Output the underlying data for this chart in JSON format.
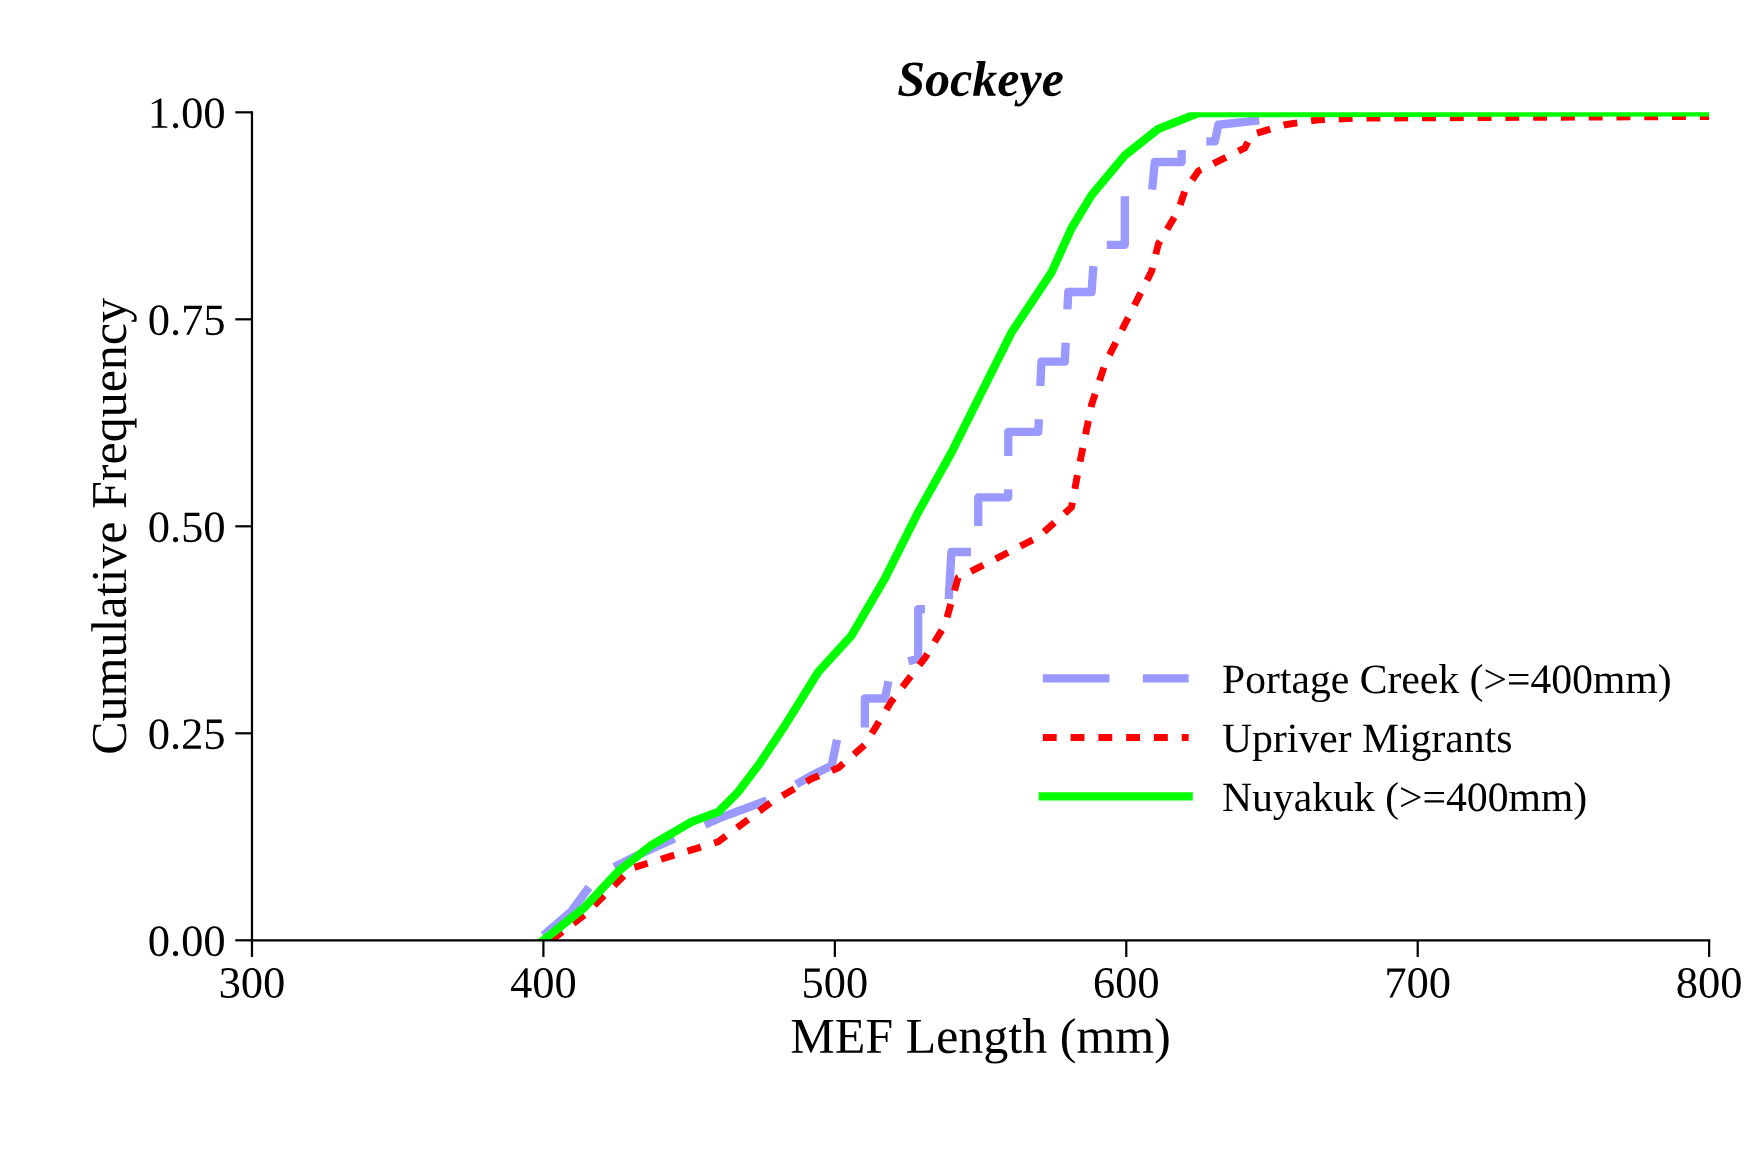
{
  "chart_data": {
    "type": "line",
    "title": "Sockeye",
    "xlabel": "MEF Length (mm)",
    "ylabel": "Cumulative Frequency",
    "xlim": [
      300,
      800
    ],
    "xticks": [
      300,
      400,
      500,
      600,
      700,
      800
    ],
    "ylim": [
      0,
      1
    ],
    "yticks": [
      {
        "value": 0,
        "label": "0.00"
      },
      {
        "value": 0.25,
        "label": "0.25"
      },
      {
        "value": 0.5,
        "label": "0.50"
      },
      {
        "value": 0.75,
        "label": "0.75"
      },
      {
        "value": 1,
        "label": "1.00"
      }
    ],
    "grid": false,
    "legend": "bottom right",
    "marker": "none",
    "series": [
      {
        "name": "Portage Creek (>=400mm)",
        "color": "#9999ff",
        "line_style": "dashed",
        "x": [
          400.0,
          409.6,
          418.8,
          432.5,
          460.0,
          478.3,
          492.0,
          498.9,
          501.1,
          510.3,
          510.3,
          517.2,
          519.5,
          528.6,
          528.6,
          538.9,
          540.0,
          549.2,
          549.2,
          559.5,
          559.5,
          569.8,
          570.9,
          578.9,
          580.1,
          588.1,
          589.2,
          599.5,
          599.5,
          608.7,
          609.8,
          619.0,
          619.0,
          630.4,
          631.6,
          647.6
        ],
        "values": [
          0.006,
          0.035,
          0.079,
          0.103,
          0.147,
          0.171,
          0.199,
          0.211,
          0.248,
          0.256,
          0.292,
          0.292,
          0.332,
          0.34,
          0.4,
          0.4,
          0.469,
          0.469,
          0.535,
          0.535,
          0.614,
          0.614,
          0.699,
          0.699,
          0.783,
          0.783,
          0.84,
          0.84,
          0.9,
          0.9,
          0.94,
          0.94,
          0.965,
          0.965,
          0.985,
          0.991
        ]
      },
      {
        "name": "Upriver Migrants",
        "color": "#ff0000",
        "line_style": "dotted",
        "x": [
          402.7,
          414.2,
          430.2,
          460.0,
          478.3,
          492.0,
          501.1,
          510.3,
          519.5,
          530.9,
          537.8,
          542.3,
          551.5,
          569.8,
          581.2,
          583.5,
          588.1,
          592.7,
          599.5,
          608.7,
          611.0,
          617.8,
          620.1,
          624.7,
          631.6,
          640.7,
          643.0,
          654.5,
          665.9,
          679.6,
          800
        ],
        "values": [
          0.0,
          0.031,
          0.087,
          0.119,
          0.167,
          0.195,
          0.208,
          0.236,
          0.289,
          0.341,
          0.381,
          0.438,
          0.454,
          0.487,
          0.523,
          0.567,
          0.647,
          0.696,
          0.744,
          0.808,
          0.841,
          0.881,
          0.905,
          0.929,
          0.941,
          0.957,
          0.973,
          0.985,
          0.991,
          0.993,
          0.995
        ]
      },
      {
        "name": "Nuyakuk (>=400mm)",
        "color": "#00ff00",
        "line_style": "solid",
        "x": [
          400.0,
          414.2,
          425.6,
          437.1,
          450.8,
          460.0,
          466.8,
          473.7,
          482.8,
          494.3,
          505.7,
          517.2,
          528.6,
          540.0,
          551.5,
          560.6,
          574.4,
          581.2,
          588.1,
          599.5,
          611.0,
          624.7,
          800
        ],
        "values": [
          0.0,
          0.04,
          0.083,
          0.115,
          0.143,
          0.155,
          0.179,
          0.211,
          0.259,
          0.324,
          0.368,
          0.437,
          0.517,
          0.589,
          0.67,
          0.734,
          0.807,
          0.86,
          0.9,
          0.948,
          0.98,
          0.999,
          1.0
        ]
      }
    ]
  }
}
